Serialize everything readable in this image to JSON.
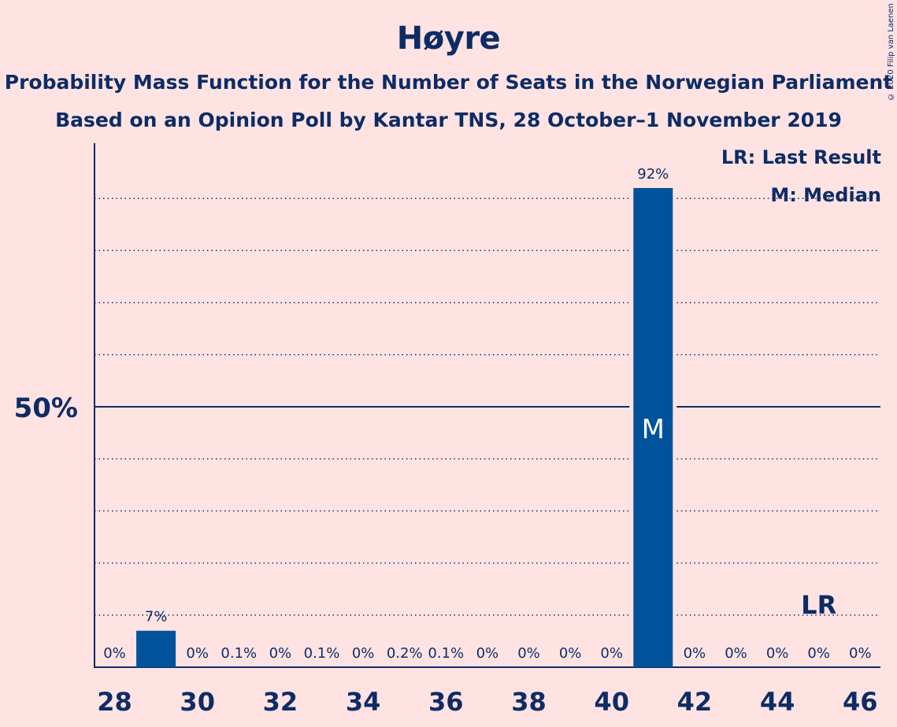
{
  "title": "Høyre",
  "subtitle_1": "Probability Mass Function for the Number of Seats in the Norwegian Parliament",
  "subtitle_2": "Based on an Opinion Poll by Kantar TNS, 28 October–1 November 2019",
  "copyright": "© 2020 Filip van Laenen",
  "legend": {
    "last_result": "LR: Last Result",
    "median": "M: Median"
  },
  "colors": {
    "background": "#ffe3e3",
    "bar": "#00539b",
    "text": "#0d2c66"
  },
  "chart_data": {
    "type": "bar",
    "x": [
      28,
      29,
      30,
      31,
      32,
      33,
      34,
      35,
      36,
      37,
      38,
      39,
      40,
      41,
      42,
      43,
      44,
      45,
      46
    ],
    "values": [
      0,
      7,
      0,
      0.1,
      0,
      0.1,
      0,
      0.2,
      0.1,
      0,
      0,
      0,
      0,
      92,
      0,
      0,
      0,
      0,
      0
    ],
    "data_labels": [
      "0%",
      "7%",
      "0%",
      "0.1%",
      "0%",
      "0.1%",
      "0%",
      "0.2%",
      "0.1%",
      "0%",
      "0%",
      "0%",
      "0%",
      "92%",
      "0%",
      "0%",
      "0%",
      "0%",
      "0%"
    ],
    "x_tick_labels": [
      "28",
      "30",
      "32",
      "34",
      "36",
      "38",
      "40",
      "42",
      "44",
      "46"
    ],
    "y_tick_label": "50%",
    "y_tick_value": 50,
    "ylim": [
      0,
      100
    ],
    "grid": "dotted, every 10%",
    "median_seat": 41,
    "median_label": "M",
    "last_result_seat": 45,
    "last_result_label": "LR"
  }
}
